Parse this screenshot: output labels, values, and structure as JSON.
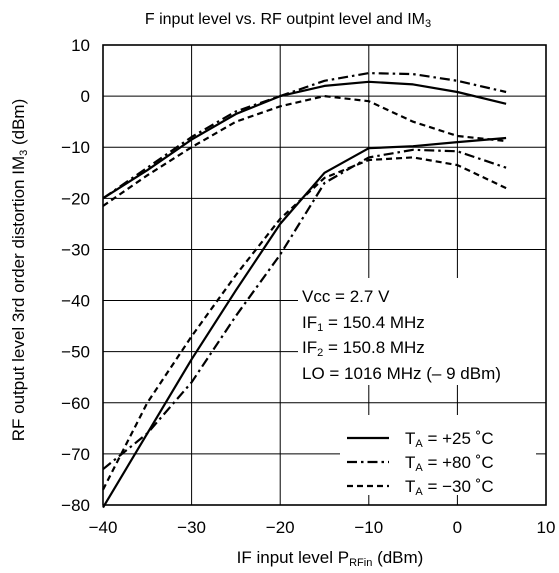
{
  "chart_data": {
    "type": "line",
    "title": "F input level vs. RF outpint level and IM3",
    "title_parts": {
      "main": "F input level vs. RF outpint level and IM",
      "sub": "3"
    },
    "xlabel": "IF input level PRFin (dBm)",
    "xlabel_parts": {
      "pre": "IF input level P",
      "sub": "RFin",
      "post": " (dBm)"
    },
    "ylabel": "RF output level 3rd order distortion IM3 (dBm)",
    "ylabel_parts": {
      "pre": "RF output level 3rd order distortion IM",
      "sub": "3",
      "post": " (dBm)"
    },
    "xlim": [
      -40,
      10
    ],
    "ylim": [
      -80,
      10
    ],
    "xticks": [
      "−40",
      "−30",
      "−20",
      "−10",
      "0",
      "10"
    ],
    "yticks": [
      "10",
      "0",
      "−10",
      "−20",
      "−30",
      "−40",
      "−50",
      "−60",
      "−70",
      "−80"
    ],
    "grid": true,
    "legend_position": "bottom-right",
    "conditions": {
      "vcc": "Vcc = 2.7 V",
      "if1": {
        "pre": "IF",
        "sub": "1",
        "post": " = 150.4 MHz"
      },
      "if2": {
        "pre": "IF",
        "sub": "2",
        "post": " = 150.8 MHz"
      },
      "lo": "LO = 1016 MHz (– 9 dBm)"
    },
    "series": [
      {
        "name": "TA = +25 ˚C",
        "legend": {
          "pre": "T",
          "sub": "A",
          "post": " = +25 ˚C"
        },
        "style": "solid",
        "curves": [
          {
            "label": "RF output",
            "x": [
              -40,
              -35,
              -30,
              -25,
              -20,
              -15,
              -10,
              -5,
              0,
              5.5
            ],
            "y": [
              -20,
              -14.5,
              -8.5,
              -3.5,
              0,
              2,
              2.8,
              2.3,
              0.8,
              -1.5
            ]
          },
          {
            "label": "IM3",
            "x": [
              -40,
              -35,
              -30,
              -25,
              -20,
              -15,
              -10,
              -5,
              0,
              5.5
            ],
            "y": [
              -80.5,
              -66,
              -51.5,
              -38,
              -25,
              -15,
              -10.2,
              -9.8,
              -9,
              -8.2
            ]
          }
        ]
      },
      {
        "name": "TA = +80 ˚C",
        "legend": {
          "pre": "T",
          "sub": "A",
          "post": " = +80 ˚C"
        },
        "style": "dashdot",
        "curves": [
          {
            "label": "RF output",
            "x": [
              -40,
              -35,
              -30,
              -25,
              -20,
              -15,
              -10,
              -5,
              0,
              5.5
            ],
            "y": [
              -20,
              -14,
              -8,
              -3,
              0,
              3,
              4.5,
              4.3,
              3,
              0.8
            ]
          },
          {
            "label": "IM3",
            "x": [
              -40,
              -35,
              -30,
              -25,
              -20,
              -15,
              -10,
              -5,
              0,
              5.5
            ],
            "y": [
              -73,
              -66,
              -56,
              -43,
              -31,
              -17,
              -12,
              -10.5,
              -10.8,
              -14
            ]
          }
        ]
      },
      {
        "name": "TA = −30 ˚C",
        "legend": {
          "pre": "T",
          "sub": "A",
          "post": " = −30 ˚C"
        },
        "style": "dashed",
        "curves": [
          {
            "label": "RF output",
            "x": [
              -40,
              -35,
              -30,
              -25,
              -20,
              -15,
              -10,
              -5,
              0,
              5.5
            ],
            "y": [
              -21.5,
              -15.5,
              -10,
              -5,
              -2,
              0,
              -1,
              -5,
              -7.8,
              -8.8
            ]
          },
          {
            "label": "IM3",
            "x": [
              -40,
              -35,
              -30,
              -25,
              -20,
              -15,
              -10,
              -5,
              0,
              5.5
            ],
            "y": [
              -77,
              -60,
              -47,
              -35,
              -24,
              -16,
              -12.5,
              -12,
              -13.5,
              -18
            ]
          }
        ]
      }
    ]
  }
}
